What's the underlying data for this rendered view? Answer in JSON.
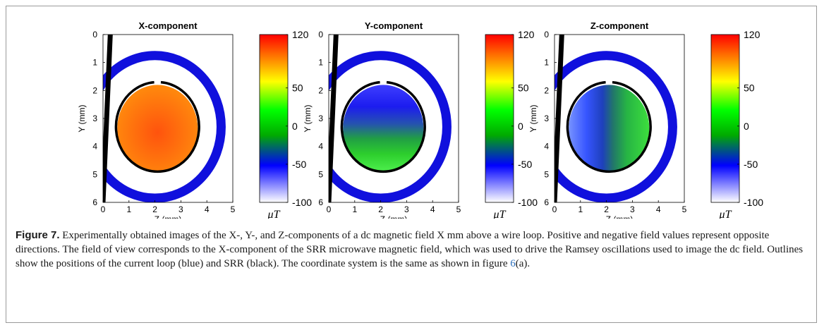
{
  "chart_data": [
    {
      "type": "heatmap",
      "title": "X-component",
      "xlabel": "Z (mm)",
      "ylabel": "Y (mm)",
      "xlim": [
        0,
        5
      ],
      "ylim": [
        0,
        6
      ],
      "y_reversed": true,
      "x_ticks": [
        "0",
        "1",
        "2",
        "3",
        "4",
        "5"
      ],
      "y_ticks": [
        "0",
        "1",
        "2",
        "3",
        "4",
        "5",
        "6"
      ],
      "field": "uniform-positive",
      "colorbar": {
        "ticks": [
          "120",
          "50",
          "0",
          "-50",
          "-100"
        ],
        "tick_values": [
          120,
          50,
          0,
          -50,
          -100
        ],
        "range": [
          -100,
          120
        ],
        "unit": "μT"
      }
    },
    {
      "type": "heatmap",
      "title": "Y-component",
      "xlabel": "Z (mm)",
      "ylabel": "Y (mm)",
      "xlim": [
        0,
        5
      ],
      "ylim": [
        0,
        6
      ],
      "y_reversed": true,
      "x_ticks": [
        "0",
        "1",
        "2",
        "3",
        "4",
        "5"
      ],
      "y_ticks": [
        "0",
        "1",
        "2",
        "3",
        "4",
        "5",
        "6"
      ],
      "field": "vertical-gradient",
      "colorbar": {
        "ticks": [
          "120",
          "50",
          "0",
          "-50",
          "-100"
        ],
        "tick_values": [
          120,
          50,
          0,
          -50,
          -100
        ],
        "range": [
          -100,
          120
        ],
        "unit": "μT"
      }
    },
    {
      "type": "heatmap",
      "title": "Z-component",
      "xlabel": "Z (mm)",
      "ylabel": "Y (mm)",
      "xlim": [
        0,
        5
      ],
      "ylim": [
        0,
        6
      ],
      "y_reversed": true,
      "x_ticks": [
        "0",
        "1",
        "2",
        "3",
        "4",
        "5"
      ],
      "y_ticks": [
        "0",
        "1",
        "2",
        "3",
        "4",
        "5",
        "6"
      ],
      "field": "horizontal-gradient",
      "colorbar": {
        "ticks": [
          "120",
          "50",
          "0",
          "-50",
          "-100"
        ],
        "tick_values": [
          120,
          50,
          0,
          -50,
          -100
        ],
        "range": [
          -100,
          120
        ],
        "unit": "μT"
      }
    }
  ],
  "geometry_mm": {
    "loop_center": [
      2.0,
      3.3
    ],
    "loop_radius": 2.55,
    "srr_center": [
      2.1,
      3.3
    ],
    "srr_radius": 1.6,
    "wire": [
      [
        0.0,
        6.0
      ],
      [
        0.28,
        0.0
      ]
    ],
    "field_center": [
      2.1,
      3.35
    ],
    "field_radius": 1.55
  },
  "colors": {
    "loop": "#1010dd",
    "srr": "#000000",
    "wire": "#000000",
    "colormap": [
      "#ffffff",
      "#0000ff",
      "#00aa00",
      "#00ff00",
      "#ffff00",
      "#ff8000",
      "#ff0000"
    ]
  },
  "caption": {
    "label": "Figure 7.",
    "text_before_link": " Experimentally obtained images of the X-, Y-, and Z-components of a dc magnetic field X mm above a wire loop. Positive and negative field values represent opposite directions. The field of view corresponds to the X-component of the SRR microwave magnetic field, which was used to drive the Ramsey oscillations used to image the dc field. Outlines show the positions of the current loop (blue) and SRR (black). The coordinate system is the same as shown in figure ",
    "link": "6",
    "text_after_link": "(a)."
  }
}
